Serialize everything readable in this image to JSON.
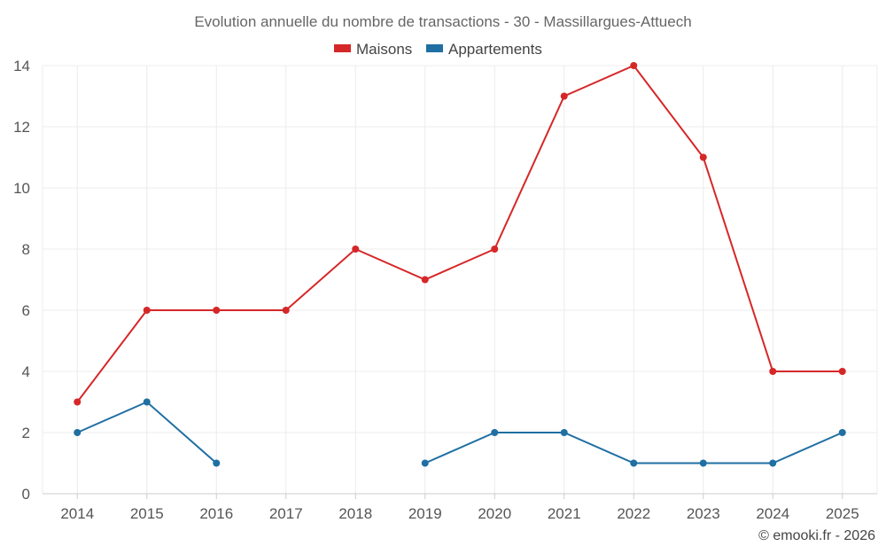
{
  "chart_data": {
    "type": "line",
    "title": "Evolution annuelle du nombre de transactions - 30 - Massillargues-Attuech",
    "categories": [
      "2014",
      "2015",
      "2016",
      "2017",
      "2018",
      "2019",
      "2020",
      "2021",
      "2022",
      "2023",
      "2024",
      "2025"
    ],
    "series": [
      {
        "name": "Maisons",
        "color": "#d62728",
        "values": [
          3,
          6,
          6,
          6,
          8,
          7,
          8,
          13,
          14,
          11,
          4,
          4
        ]
      },
      {
        "name": "Appartements",
        "color": "#1f6fa3",
        "values": [
          2,
          3,
          1,
          null,
          null,
          1,
          2,
          2,
          1,
          1,
          1,
          2
        ]
      }
    ],
    "ylim": [
      0,
      14
    ],
    "yticks": [
      0,
      2,
      4,
      6,
      8,
      10,
      12,
      14
    ],
    "grid": true,
    "legend": "top-center",
    "xlabel": "",
    "ylabel": ""
  },
  "credit": "© emooki.fr - 2026"
}
